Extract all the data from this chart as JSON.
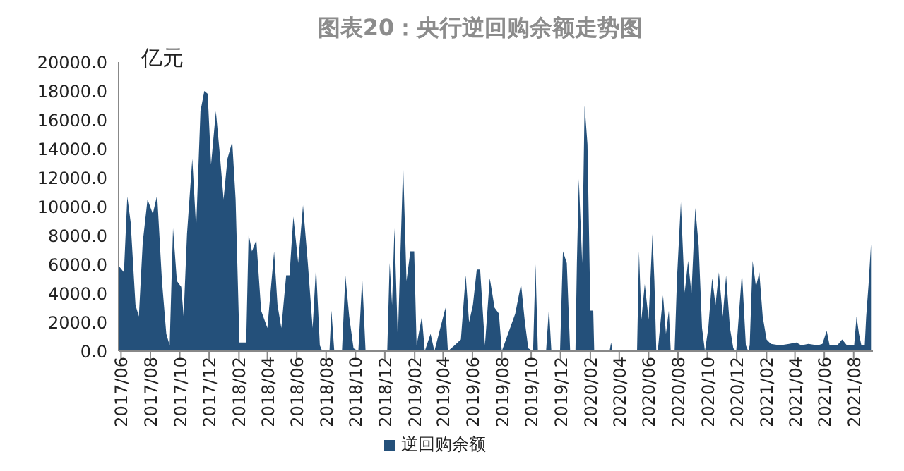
{
  "chart_data": {
    "type": "area",
    "title": "图表20：央行逆回购余额走势图",
    "ylabel": "亿元",
    "x": [
      "2017-05-28",
      "2017-06-07",
      "2017-06-14",
      "2017-06-21",
      "2017-07-01",
      "2017-07-08",
      "2017-07-16",
      "2017-07-26",
      "2017-08-06",
      "2017-08-15",
      "2017-08-25",
      "2017-09-03",
      "2017-09-10",
      "2017-09-17",
      "2017-09-25",
      "2017-10-04",
      "2017-10-09",
      "2017-10-16",
      "2017-10-27",
      "2017-11-04",
      "2017-11-13",
      "2017-11-21",
      "2017-11-28",
      "2017-12-05",
      "2017-12-15",
      "2017-12-23",
      "2017-12-31",
      "2018-01-08",
      "2018-01-18",
      "2018-01-25",
      "2018-02-02",
      "2018-02-16",
      "2018-02-21",
      "2018-02-28",
      "2018-03-09",
      "2018-03-19",
      "2018-04-01",
      "2018-04-15",
      "2018-04-22",
      "2018-04-30",
      "2018-05-10",
      "2018-05-17",
      "2018-05-25",
      "2018-06-04",
      "2018-06-14",
      "2018-06-24",
      "2018-07-04",
      "2018-07-11",
      "2018-07-19",
      "2018-07-24",
      "2018-08-08",
      "2018-08-12",
      "2018-08-18",
      "2018-09-03",
      "2018-09-10",
      "2018-09-18",
      "2018-09-27",
      "2018-10-07",
      "2018-10-15",
      "2018-10-22",
      "2018-12-06",
      "2018-12-11",
      "2018-12-16",
      "2018-12-21",
      "2018-12-28",
      "2019-01-08",
      "2019-01-15",
      "2019-01-23",
      "2019-01-31",
      "2019-02-05",
      "2019-02-16",
      "2019-02-22",
      "2019-03-06",
      "2019-03-14",
      "2019-04-06",
      "2019-04-11",
      "2019-04-25",
      "2019-05-08",
      "2019-05-18",
      "2019-05-25",
      "2019-06-02",
      "2019-06-10",
      "2019-06-17",
      "2019-06-27",
      "2019-07-07",
      "2019-07-17",
      "2019-07-26",
      "2019-08-01",
      "2019-08-29",
      "2019-09-10",
      "2019-09-18",
      "2019-09-25",
      "2019-10-05",
      "2019-10-10",
      "2019-10-15",
      "2019-11-01",
      "2019-11-07",
      "2019-11-12",
      "2019-11-30",
      "2019-12-06",
      "2019-12-14",
      "2019-12-21",
      "2020-01-01",
      "2020-01-04",
      "2020-01-08",
      "2020-01-15",
      "2020-01-20",
      "2020-01-26",
      "2020-02-01",
      "2020-02-07",
      "2020-02-09",
      "2020-03-12",
      "2020-03-15",
      "2020-03-18",
      "2020-05-08",
      "2020-05-12",
      "2020-05-17",
      "2020-05-24",
      "2020-06-01",
      "2020-06-09",
      "2020-06-13",
      "2020-06-17",
      "2020-06-20",
      "2020-07-01",
      "2020-07-07",
      "2020-07-13",
      "2020-07-17",
      "2020-07-25",
      "2020-07-30",
      "2020-08-07",
      "2020-08-15",
      "2020-08-22",
      "2020-08-29",
      "2020-09-06",
      "2020-09-13",
      "2020-09-20",
      "2020-09-26",
      "2020-10-03",
      "2020-10-11",
      "2020-10-18",
      "2020-10-25",
      "2020-11-02",
      "2020-11-09",
      "2020-11-17",
      "2020-11-24",
      "2020-11-30",
      "2020-12-12",
      "2020-12-20",
      "2020-12-25",
      "2020-12-28",
      "2021-01-03",
      "2021-01-10",
      "2021-01-17",
      "2021-01-24",
      "2021-02-01",
      "2021-02-10",
      "2021-03-01",
      "2021-03-20",
      "2021-04-04",
      "2021-04-14",
      "2021-04-29",
      "2021-05-18",
      "2021-05-28",
      "2021-06-06",
      "2021-06-12",
      "2021-06-28",
      "2021-07-08",
      "2021-07-18",
      "2021-08-02",
      "2021-08-07",
      "2021-08-12",
      "2021-08-17",
      "2021-08-24",
      "2021-08-27",
      "2021-09-01",
      "2021-09-06"
    ],
    "series": [
      {
        "name": "逆回购余额",
        "color": "#24507a",
        "values": [
          5860,
          5450,
          10700,
          8900,
          3200,
          2400,
          7500,
          10500,
          9500,
          10800,
          4850,
          1200,
          400,
          8500,
          4850,
          4450,
          2400,
          8100,
          13300,
          8500,
          16600,
          18000,
          17800,
          12900,
          16600,
          13700,
          10500,
          13300,
          14500,
          10500,
          600,
          600,
          8100,
          6900,
          7700,
          2800,
          1600,
          6900,
          3200,
          1600,
          5250,
          5250,
          9300,
          6100,
          10100,
          6100,
          1600,
          5850,
          400,
          0,
          0,
          2800,
          0,
          0,
          5250,
          2400,
          200,
          0,
          5050,
          0,
          0,
          6100,
          3200,
          8500,
          800,
          12900,
          4850,
          6900,
          6900,
          400,
          2400,
          0,
          1200,
          0,
          3000,
          0,
          400,
          800,
          5250,
          2000,
          3200,
          5650,
          5650,
          400,
          5050,
          3000,
          2600,
          0,
          2600,
          4650,
          2000,
          200,
          0,
          6000,
          0,
          0,
          3000,
          0,
          0,
          6900,
          6100,
          0,
          0,
          6100,
          11900,
          6100,
          17000,
          14300,
          2800,
          2800,
          0,
          0,
          600,
          0,
          0,
          6900,
          2200,
          4650,
          2200,
          8100,
          4850,
          0,
          0,
          3850,
          1200,
          2800,
          0,
          0,
          5050,
          10300,
          4050,
          6250,
          4000,
          9900,
          7300,
          1600,
          0,
          1600,
          5050,
          3200,
          5450,
          2400,
          5250,
          1600,
          200,
          0,
          5450,
          400,
          0,
          400,
          6250,
          4450,
          5450,
          2400,
          800,
          500,
          400,
          500,
          600,
          400,
          500,
          400,
          500,
          1400,
          400,
          400,
          800,
          400,
          400,
          2400,
          1200,
          400,
          400,
          2400,
          4650,
          7400
        ]
      }
    ],
    "xlim": [
      "2017-05-27",
      "2021-09-10"
    ],
    "xticks": [
      {
        "value": "2017-06",
        "label": "2017/06"
      },
      {
        "value": "2017-08",
        "label": "2017/08"
      },
      {
        "value": "2017-10",
        "label": "2017/10"
      },
      {
        "value": "2017-12",
        "label": "2017/12"
      },
      {
        "value": "2018-02",
        "label": "2018/02"
      },
      {
        "value": "2018-04",
        "label": "2018/04"
      },
      {
        "value": "2018-06",
        "label": "2018/06"
      },
      {
        "value": "2018-08",
        "label": "2018/08"
      },
      {
        "value": "2018-10",
        "label": "2018/10"
      },
      {
        "value": "2018-12",
        "label": "2018/12"
      },
      {
        "value": "2019-02",
        "label": "2019/02"
      },
      {
        "value": "2019-04",
        "label": "2019/04"
      },
      {
        "value": "2019-06",
        "label": "2019/06"
      },
      {
        "value": "2019-08",
        "label": "2019/08"
      },
      {
        "value": "2019-10",
        "label": "2019/10"
      },
      {
        "value": "2019-12",
        "label": "2019/12"
      },
      {
        "value": "2020-02",
        "label": "2020/02"
      },
      {
        "value": "2020-04",
        "label": "2020/04"
      },
      {
        "value": "2020-06",
        "label": "2020/06"
      },
      {
        "value": "2020-08",
        "label": "2020/08"
      },
      {
        "value": "2020-10",
        "label": "2020/10"
      },
      {
        "value": "2020-12",
        "label": "2020/12"
      },
      {
        "value": "2021-02",
        "label": "2021/02"
      },
      {
        "value": "2021-04",
        "label": "2021/04"
      },
      {
        "value": "2021-06",
        "label": "2021/06"
      },
      {
        "value": "2021-08",
        "label": "2021/08"
      }
    ],
    "ylim": [
      0,
      20000
    ],
    "yticks": [
      {
        "value": 0,
        "label": "0.0"
      },
      {
        "value": 2000,
        "label": "2000.0"
      },
      {
        "value": 4000,
        "label": "4000.0"
      },
      {
        "value": 6000,
        "label": "6000.0"
      },
      {
        "value": 8000,
        "label": "8000.0"
      },
      {
        "value": 10000,
        "label": "10000.0"
      },
      {
        "value": 12000,
        "label": "12000.0"
      },
      {
        "value": 14000,
        "label": "14000.0"
      },
      {
        "value": 16000,
        "label": "16000.0"
      },
      {
        "value": 18000,
        "label": "18000.0"
      },
      {
        "value": 20000,
        "label": "20000.0"
      }
    ],
    "legend": "bottom"
  }
}
